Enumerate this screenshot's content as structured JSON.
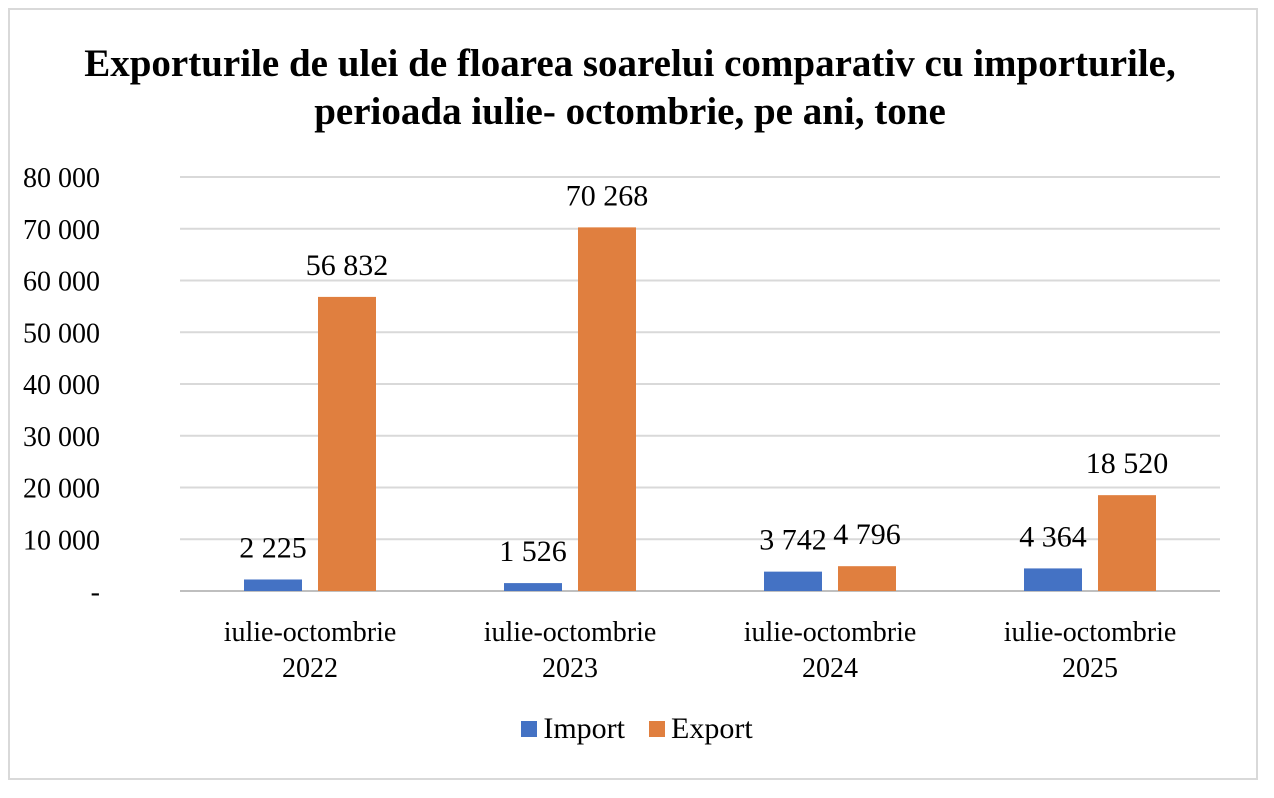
{
  "chart_data": {
    "type": "bar",
    "title": "Exporturile de ulei de floarea soarelui comparativ cu importurile, perioada iulie- octombrie, pe ani, tone",
    "categories": [
      [
        "iulie-octombrie",
        "2022"
      ],
      [
        "iulie-octombrie",
        "2023"
      ],
      [
        "iulie-octombrie",
        "2024"
      ],
      [
        "iulie-octombrie",
        "2025"
      ]
    ],
    "series": [
      {
        "name": "Import",
        "color": "#4472c4",
        "values": [
          2225,
          1526,
          3742,
          4364
        ],
        "labels": [
          "2 225",
          "1 526",
          "3 742",
          "4 364"
        ]
      },
      {
        "name": "Export",
        "color": "#e07f3f",
        "values": [
          56832,
          70268,
          4796,
          18520
        ],
        "labels": [
          "56 832",
          "70 268",
          "4 796",
          "18 520"
        ]
      }
    ],
    "ylim": [
      0,
      80000
    ],
    "yticks": [
      {
        "value": 0,
        "label": "-"
      },
      {
        "value": 10000,
        "label": "10 000"
      },
      {
        "value": 20000,
        "label": "20 000"
      },
      {
        "value": 30000,
        "label": "30 000"
      },
      {
        "value": 40000,
        "label": "40 000"
      },
      {
        "value": 50000,
        "label": "50 000"
      },
      {
        "value": 60000,
        "label": "60 000"
      },
      {
        "value": 70000,
        "label": "70 000"
      },
      {
        "value": 80000,
        "label": "80 000"
      }
    ],
    "grid": true,
    "legend_position": "bottom"
  }
}
